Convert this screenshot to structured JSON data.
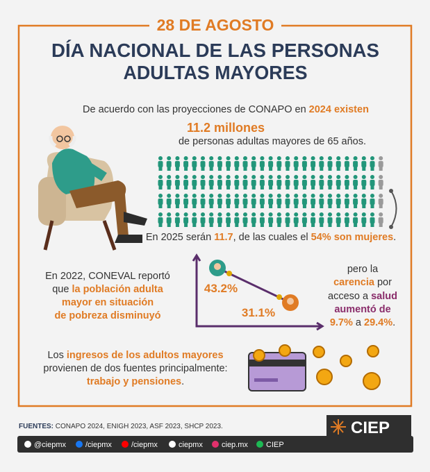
{
  "header": {
    "date": "28 DE AGOSTO",
    "title": [
      "DÍA NACIONAL DE LAS PERSONAS",
      "ADULTAS MAYORES"
    ]
  },
  "population": {
    "intro": [
      "De acuerdo con las proyecciones de CONAPO en ",
      "2024 existen"
    ],
    "highlight": "11.2 millones",
    "subtitle": "de personas adultas mayores de 65 años.",
    "projection": [
      "En 2025 serán ",
      "11.7",
      ", de las cuales el ",
      "54% son mujeres",
      "."
    ]
  },
  "poverty": {
    "lines": [
      [
        "En 2022, CONEVAL reportó"
      ],
      [
        "que ",
        "la población adulta"
      ],
      [
        "mayor en situación"
      ],
      [
        "de pobreza disminuyó"
      ]
    ],
    "start_label": "43.2%",
    "end_label": "31.1%"
  },
  "health": {
    "lines": [
      [
        "pero la"
      ],
      [
        "carencia",
        " por"
      ],
      [
        "acceso a ",
        "salud"
      ],
      [
        "aumentó de"
      ],
      [
        "9.7%",
        " a ",
        "29.4%",
        "."
      ]
    ]
  },
  "income": {
    "lines": [
      [
        "Los ",
        "ingresos de los adultos mayores"
      ],
      [
        "provienen de dos fuentes principalmente:"
      ],
      [
        "trabajo y pensiones",
        "."
      ]
    ]
  },
  "footer": {
    "sources_label": "FUENTES:",
    "sources": " CONAPO 2024, ENIGH 2023, ASF 2023, SHCP 2023.",
    "logo": "CIEP",
    "social": [
      "@ciepmx",
      "/ciepmx",
      "/ciepmx",
      "ciepmx",
      "ciep.mx",
      "CIEP"
    ]
  }
}
